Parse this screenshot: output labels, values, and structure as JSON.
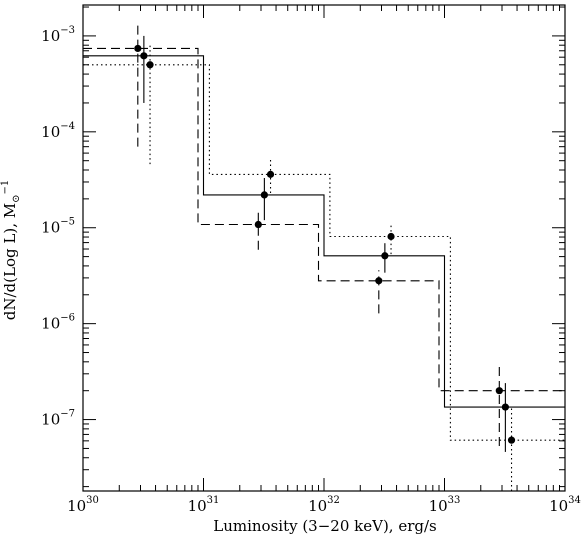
{
  "chart_data": {
    "type": "line",
    "title": "",
    "xlabel": "Luminosity (3−20 keV), erg/s",
    "ylabel": "dN/d(Log L), M",
    "ylabel_sub": "⊙",
    "ylabel_sup": "−1",
    "x_scale": "log",
    "y_scale": "log",
    "xlim": [
      1e+30,
      1e+34
    ],
    "ylim": [
      1.8e-08,
      0.0021
    ],
    "x_ticks": [
      {
        "base": "10",
        "exp": "30",
        "value": 1e+30
      },
      {
        "base": "10",
        "exp": "31",
        "value": 1e+31
      },
      {
        "base": "10",
        "exp": "32",
        "value": 1e+32
      },
      {
        "base": "10",
        "exp": "33",
        "value": 1e+33
      },
      {
        "base": "10",
        "exp": "34",
        "value": 1e+34
      }
    ],
    "y_ticks": [
      {
        "base": "10",
        "exp": "−7",
        "value": 1e-07
      },
      {
        "base": "10",
        "exp": "−6",
        "value": 1e-06
      },
      {
        "base": "10",
        "exp": "−5",
        "value": 1e-05
      },
      {
        "base": "10",
        "exp": "−4",
        "value": 0.0001
      },
      {
        "base": "10",
        "exp": "−3",
        "value": 0.001
      }
    ],
    "grid": false,
    "legend": "none",
    "series": [
      {
        "style": "solid",
        "step_edges": [
          1e+30,
          1e+31,
          1e+32,
          1e+33,
          1e+34
        ],
        "step_values": [
          0.00062,
          2.2e-05,
          5.1e-06,
          1.35e-07
        ],
        "points": [
          {
            "x": 3.2e+30,
            "y": 0.00062,
            "ylo": 0.0002,
            "yhi": 0.001
          },
          {
            "x": 3.2e+31,
            "y": 2.2e-05,
            "ylo": 1.2e-05,
            "yhi": 3.3e-05
          },
          {
            "x": 3.2e+32,
            "y": 5.1e-06,
            "ylo": 3.4e-06,
            "yhi": 6.9e-06
          },
          {
            "x": 3.2e+33,
            "y": 1.35e-07,
            "ylo": 4.6e-08,
            "yhi": 2.4e-07
          }
        ]
      },
      {
        "style": "dashed",
        "step_edges": [
          1e+30,
          9e+30,
          9e+31,
          9e+32,
          1e+34
        ],
        "step_values": [
          0.00074,
          1.08e-05,
          2.8e-06,
          2e-07
        ],
        "points": [
          {
            "x": 2.85e+30,
            "y": 0.00074,
            "ylo": 7e-05,
            "yhi": 0.0013
          },
          {
            "x": 2.85e+31,
            "y": 1.08e-05,
            "ylo": 5.9e-06,
            "yhi": 1.5e-05
          },
          {
            "x": 2.85e+32,
            "y": 2.8e-06,
            "ylo": 1.28e-06,
            "yhi": 3.6e-06
          },
          {
            "x": 2.85e+33,
            "y": 2e-07,
            "ylo": 5.3e-08,
            "yhi": 3.7e-07
          }
        ]
      },
      {
        "style": "dotted",
        "step_edges": [
          1e+30,
          1.12e+31,
          1.12e+32,
          1.12e+33,
          1e+34
        ],
        "step_values": [
          0.0005,
          3.6e-05,
          8.1e-06,
          6.1e-08
        ],
        "points": [
          {
            "x": 3.6e+30,
            "y": 0.0005,
            "ylo": 4.6e-05,
            "yhi": 0.00085
          },
          {
            "x": 3.6e+31,
            "y": 3.6e-05,
            "ylo": 2.3e-05,
            "yhi": 5.1e-05
          },
          {
            "x": 3.6e+32,
            "y": 8.1e-06,
            "ylo": 5.3e-06,
            "yhi": 1.1e-05
          },
          {
            "x": 3.6e+33,
            "y": 6.1e-08,
            "ylo": 1.8e-08,
            "yhi": 1.35e-07
          }
        ]
      }
    ]
  }
}
